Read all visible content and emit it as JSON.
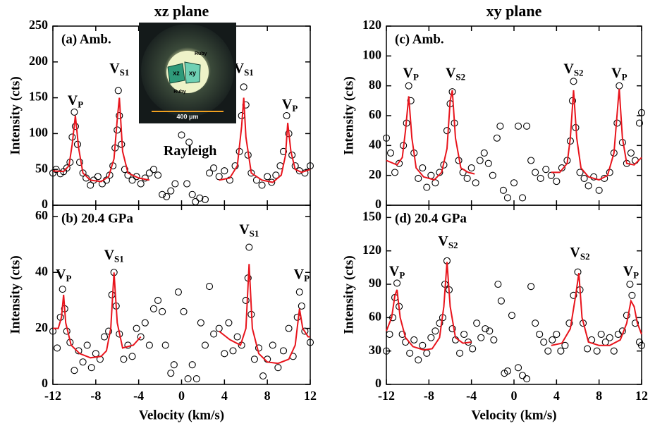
{
  "chart_data": [
    {
      "type": "scatter",
      "title": "xz plane",
      "panel_label": "(a) Amb.",
      "ylabel": "Intensity (cts)",
      "xlim": [
        -12,
        12
      ],
      "xticks": [
        -12,
        -8,
        -4,
        0,
        4,
        8,
        12
      ],
      "show_xtick_labels": false,
      "ylim": [
        0,
        250
      ],
      "yticks": [
        0,
        50,
        100,
        150,
        200,
        250
      ],
      "annotations": [
        {
          "text": "V",
          "sub": "P"
        },
        {
          "text": "V",
          "sub": "S1"
        },
        {
          "text": "V",
          "sub": "S1"
        },
        {
          "text": "V",
          "sub": "P"
        },
        {
          "text": "Rayleigh"
        }
      ],
      "inset_labels": [
        "xz",
        "xy",
        "Ruby",
        "Ruby",
        "400 μm"
      ],
      "series": [
        {
          "style": "marker",
          "color": "#000000",
          "x": [
            -12,
            -11.7,
            -11.3,
            -11,
            -10.7,
            -10.4,
            -10.2,
            -10,
            -9.9,
            -9.7,
            -9.5,
            -9.2,
            -8.9,
            -8.5,
            -8.2,
            -7.8,
            -7.4,
            -7,
            -6.7,
            -6.4,
            -6.2,
            -6,
            -5.9,
            -5.8,
            -5.6,
            -5.3,
            -5,
            -4.6,
            -4.2,
            -3.8,
            -3.4,
            -3,
            -2.6,
            -2.2,
            -1.8,
            -1.4,
            -1,
            -0.6,
            0,
            0.5,
            0.7,
            1,
            1.3,
            1.7,
            2.2,
            2.6,
            3,
            3.5,
            4,
            4.5,
            5,
            5.4,
            5.6,
            5.8,
            6,
            6.2,
            6.5,
            7,
            7.5,
            8,
            8.4,
            8.8,
            9.2,
            9.5,
            9.8,
            10,
            10.3,
            10.6,
            11,
            11.5,
            12
          ],
          "values": [
            45,
            50,
            44,
            47,
            52,
            60,
            95,
            130,
            110,
            85,
            60,
            45,
            38,
            28,
            35,
            40,
            30,
            35,
            42,
            55,
            80,
            105,
            160,
            125,
            85,
            50,
            42,
            35,
            40,
            30,
            38,
            45,
            50,
            42,
            15,
            12,
            20,
            30,
            98,
            30,
            88,
            15,
            5,
            10,
            8,
            45,
            52,
            40,
            48,
            35,
            55,
            75,
            125,
            165,
            140,
            70,
            45,
            35,
            28,
            40,
            32,
            42,
            55,
            75,
            125,
            100,
            70,
            55,
            48,
            45,
            55
          ]
        },
        {
          "style": "line",
          "color": "#e8141c",
          "x": [
            -12,
            -11,
            -10.5,
            -10.2,
            -9.9,
            -9.6,
            -9.2,
            -8.5,
            -7.5,
            -6.8,
            -6.3,
            -6,
            -5.8,
            -5.5,
            -5,
            -4,
            -3,
            null,
            3.5,
            4.5,
            5.2,
            5.6,
            5.8,
            6,
            6.5,
            7.5,
            8.5,
            9.3,
            9.7,
            9.9,
            10.2,
            10.6,
            11.2,
            12
          ],
          "values": [
            48,
            47,
            55,
            85,
            125,
            80,
            45,
            35,
            33,
            40,
            65,
            120,
            150,
            75,
            45,
            38,
            35,
            null,
            35,
            38,
            55,
            110,
            150,
            95,
            45,
            35,
            32,
            42,
            70,
            115,
            75,
            50,
            46,
            50
          ]
        }
      ]
    },
    {
      "type": "scatter",
      "panel_label": "(b) 20.4 GPa",
      "ylabel": "Intensity (cts)",
      "xlabel": "Velocity (km/s)",
      "xlim": [
        -12,
        12
      ],
      "xticks": [
        -12,
        -8,
        -4,
        0,
        4,
        8,
        12
      ],
      "show_xtick_labels": true,
      "ylim": [
        0,
        64
      ],
      "yticks": [
        0,
        20,
        40,
        60
      ],
      "annotations": [
        {
          "text": "V",
          "sub": "P"
        },
        {
          "text": "V",
          "sub": "S1"
        },
        {
          "text": "V",
          "sub": "S1"
        },
        {
          "text": "V",
          "sub": "P"
        }
      ],
      "series": [
        {
          "style": "marker",
          "color": "#000000",
          "x": [
            -12,
            -11.6,
            -11.3,
            -11.1,
            -10.9,
            -10.7,
            -10.4,
            -10,
            -9.6,
            -9.2,
            -8.8,
            -8.4,
            -8,
            -7.6,
            -7.2,
            -6.8,
            -6.5,
            -6.3,
            -6.1,
            -5.8,
            -5.4,
            -5,
            -4.6,
            -4.2,
            -3.8,
            -3.4,
            -3,
            -2.6,
            -2.2,
            -1.8,
            -1.5,
            -1,
            -0.7,
            -0.3,
            0.2,
            0.6,
            1,
            1.4,
            1.8,
            2.2,
            2.6,
            3,
            3.5,
            4,
            4.4,
            4.8,
            5.2,
            5.6,
            6,
            6.2,
            6.3,
            6.5,
            6.8,
            7.2,
            7.6,
            8,
            8.5,
            9,
            9.5,
            10,
            10.4,
            10.8,
            11,
            11.2,
            11.5,
            12
          ],
          "values": [
            19,
            13,
            24,
            34,
            27,
            19,
            15,
            5,
            12,
            8,
            14,
            6,
            11,
            9,
            17,
            19,
            32,
            40,
            28,
            18,
            9,
            14,
            10,
            20,
            17,
            22,
            14,
            27,
            30,
            26,
            14,
            4,
            7,
            33,
            26,
            2,
            7,
            2,
            22,
            14,
            35,
            18,
            20,
            11,
            22,
            12,
            17,
            14,
            30,
            38,
            49,
            25,
            9,
            13,
            3,
            9,
            14,
            6,
            12,
            20,
            10,
            24,
            33,
            28,
            19,
            15
          ]
        },
        {
          "style": "line",
          "color": "#e8141c",
          "x": [
            -12,
            -11.5,
            -11.2,
            -11,
            -10.8,
            -10.3,
            -9.5,
            -8.5,
            -7.5,
            -7,
            -6.6,
            -6.3,
            -6,
            -5.5,
            -4.5,
            -3.8,
            null,
            3.5,
            4.5,
            5.5,
            6,
            6.3,
            6.6,
            7.2,
            8,
            9,
            10,
            10.6,
            11,
            11.3,
            11.8,
            12
          ],
          "values": [
            20,
            20,
            24,
            32,
            22,
            14,
            11,
            9.5,
            10,
            12,
            20,
            40,
            22,
            13,
            14,
            17,
            null,
            19,
            16,
            14,
            20,
            43,
            20,
            11,
            8,
            7.5,
            9,
            14,
            27,
            20,
            17,
            17
          ]
        }
      ]
    },
    {
      "type": "scatter",
      "title": "xy plane",
      "panel_label": "(c) Amb.",
      "ylabel": "Intensity (cts)",
      "xlim": [
        -12,
        12
      ],
      "xticks": [
        -12,
        -8,
        -4,
        0,
        4,
        8,
        12
      ],
      "show_xtick_labels": false,
      "ylim": [
        0,
        120
      ],
      "yticks": [
        0,
        20,
        40,
        60,
        80,
        100,
        120
      ],
      "annotations": [
        {
          "text": "V",
          "sub": "P"
        },
        {
          "text": "V",
          "sub": "S2"
        },
        {
          "text": "V",
          "sub": "S2"
        },
        {
          "text": "V",
          "sub": "P"
        }
      ],
      "series": [
        {
          "style": "marker",
          "color": "#000000",
          "x": [
            -12,
            -11.6,
            -11.2,
            -10.8,
            -10.4,
            -10.1,
            -9.9,
            -9.7,
            -9.4,
            -9,
            -8.6,
            -8.2,
            -7.8,
            -7.4,
            -7,
            -6.6,
            -6.3,
            -6,
            -5.8,
            -5.6,
            -5.2,
            -4.8,
            -4.4,
            -4,
            -3.6,
            -3.2,
            -2.8,
            -2.4,
            -2,
            -1.6,
            -1.3,
            -1,
            -0.6,
            0,
            0.4,
            0.8,
            1.2,
            1.6,
            2,
            2.5,
            3,
            3.5,
            4,
            4.5,
            5,
            5.3,
            5.5,
            5.6,
            5.8,
            6.2,
            6.6,
            7,
            7.5,
            8,
            8.5,
            9,
            9.4,
            9.7,
            9.9,
            10.2,
            10.6,
            11,
            11.4,
            11.8,
            12
          ],
          "values": [
            45,
            35,
            22,
            28,
            40,
            55,
            80,
            70,
            35,
            18,
            25,
            12,
            20,
            15,
            22,
            27,
            50,
            68,
            76,
            55,
            30,
            22,
            18,
            25,
            15,
            30,
            35,
            28,
            20,
            45,
            53,
            10,
            5,
            15,
            53,
            5,
            53,
            30,
            22,
            18,
            24,
            20,
            16,
            25,
            30,
            43,
            70,
            83,
            52,
            22,
            18,
            13,
            19,
            10,
            18,
            22,
            35,
            55,
            80,
            42,
            28,
            35,
            30,
            55,
            62
          ]
        },
        {
          "style": "line",
          "color": "#e8141c",
          "x": [
            -12,
            -11,
            -10.5,
            -10.2,
            -9.9,
            -9.6,
            -9.2,
            -8.5,
            -7.5,
            -6.8,
            -6.3,
            -6,
            -5.8,
            -5.5,
            -5,
            -4.3,
            -3.7,
            null,
            3.5,
            4.3,
            5,
            5.3,
            5.6,
            5.9,
            6.3,
            7,
            8,
            8.8,
            9.4,
            9.8,
            9.9,
            10.2,
            10.6,
            11.3,
            12
          ],
          "values": [
            30,
            27,
            32,
            50,
            73,
            45,
            25,
            19,
            17,
            22,
            38,
            70,
            77,
            45,
            25,
            22,
            21,
            null,
            22,
            22,
            28,
            45,
            77,
            45,
            25,
            19,
            17,
            20,
            35,
            70,
            78,
            45,
            28,
            27,
            32
          ]
        }
      ]
    },
    {
      "type": "scatter",
      "panel_label": "(d) 20.4 GPa",
      "ylabel": "Intensity (cts)",
      "xlabel": "Velocity (km/s)",
      "xlim": [
        -12,
        12
      ],
      "xticks": [
        -12,
        -8,
        -4,
        0,
        4,
        8,
        12
      ],
      "show_xtick_labels": true,
      "ylim": [
        0,
        161
      ],
      "yticks": [
        0,
        30,
        60,
        90,
        120,
        150
      ],
      "annotations": [
        {
          "text": "V",
          "sub": "P"
        },
        {
          "text": "V",
          "sub": "S2"
        },
        {
          "text": "V",
          "sub": "S2"
        },
        {
          "text": "V",
          "sub": "P"
        }
      ],
      "series": [
        {
          "style": "marker",
          "color": "#000000",
          "x": [
            -12,
            -11.7,
            -11.4,
            -11.2,
            -11,
            -10.8,
            -10.5,
            -10.2,
            -9.8,
            -9.4,
            -9,
            -8.6,
            -8.2,
            -7.8,
            -7.4,
            -7,
            -6.7,
            -6.5,
            -6.3,
            -6.1,
            -5.8,
            -5.5,
            -5.1,
            -4.7,
            -4.3,
            -3.9,
            -3.5,
            -3.1,
            -2.7,
            -2.3,
            -1.9,
            -1.5,
            -1.2,
            -0.9,
            -0.6,
            -0.2,
            0.4,
            0.8,
            1.2,
            1.6,
            2,
            2.4,
            2.8,
            3.2,
            3.6,
            4,
            4.4,
            4.8,
            5.2,
            5.6,
            6,
            6.2,
            6.5,
            6.9,
            7.3,
            7.8,
            8.2,
            8.6,
            9,
            9.4,
            9.8,
            10.2,
            10.6,
            10.9,
            11.1,
            11.4,
            11.8,
            12
          ],
          "values": [
            30,
            45,
            60,
            78,
            91,
            70,
            45,
            38,
            28,
            40,
            22,
            35,
            28,
            42,
            48,
            55,
            60,
            90,
            111,
            85,
            50,
            40,
            28,
            45,
            38,
            32,
            55,
            42,
            50,
            48,
            40,
            90,
            75,
            10,
            12,
            62,
            15,
            8,
            5,
            88,
            55,
            45,
            38,
            30,
            40,
            45,
            30,
            35,
            55,
            80,
            101,
            85,
            55,
            32,
            40,
            30,
            45,
            38,
            42,
            30,
            45,
            48,
            62,
            90,
            80,
            55,
            38,
            35
          ]
        },
        {
          "style": "line",
          "color": "#e8141c",
          "x": [
            -12,
            -11.5,
            -11.2,
            -11,
            -10.7,
            -10.2,
            -9.5,
            -8.5,
            -7.7,
            -7,
            -6.6,
            -6.3,
            -6,
            -5.5,
            -4.8,
            -4,
            null,
            3.5,
            4.5,
            5.3,
            5.8,
            6.1,
            6.4,
            7,
            8,
            9,
            10,
            10.6,
            11,
            11.3,
            11.6,
            12
          ],
          "values": [
            48,
            60,
            80,
            85,
            60,
            42,
            34,
            31,
            32,
            42,
            70,
            110,
            70,
            42,
            37,
            38,
            null,
            35,
            37,
            50,
            80,
            100,
            60,
            38,
            35,
            35,
            40,
            55,
            75,
            70,
            55,
            45
          ]
        }
      ]
    }
  ]
}
